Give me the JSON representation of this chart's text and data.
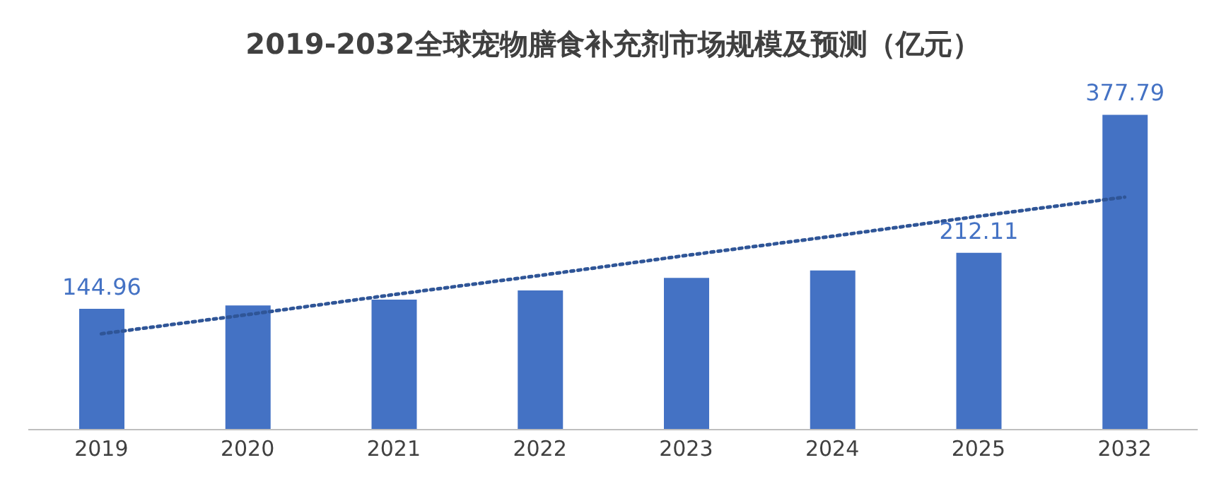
{
  "chart_data": {
    "type": "bar",
    "title": "2019-2032全球宠物膳食补充剂市场规模及预测（亿元）",
    "categories": [
      "2019",
      "2020",
      "2021",
      "2022",
      "2023",
      "2024",
      "2025",
      "2032"
    ],
    "tick_labels": "x",
    "series": [
      {
        "color": "#4472c4",
        "values": [
          144.96,
          149,
          156,
          167,
          182,
          191,
          212.11,
          377.79
        ],
        "value_labels": [
          "144.96",
          null,
          null,
          null,
          null,
          null,
          "212.11",
          "377.79"
        ]
      },
      {
        "type": "line",
        "color": "#2f5597",
        "line_style": "dotted",
        "values": [
          115,
          138,
          162,
          185,
          209,
          232,
          256,
          279
        ]
      }
    ]
  }
}
